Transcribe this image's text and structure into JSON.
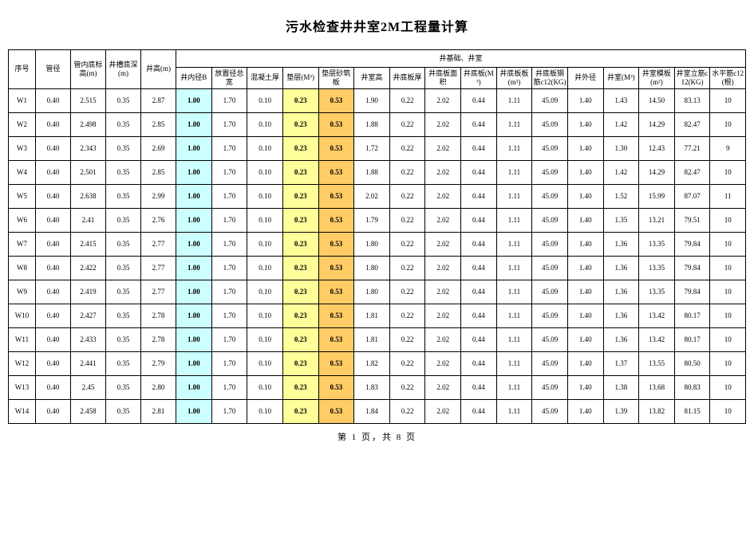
{
  "title": "污水检查井井室2M工程量计算",
  "group_header": "井基础、井室",
  "columns": [
    "序号",
    "管径",
    "管内底标高(m)",
    "井槽底深(m)",
    "井高(m)",
    "井内径B",
    "放置径总宽",
    "混凝土厚",
    "垫层(M³)",
    "垫层砂筑板",
    "井室高",
    "井底板厚",
    "井底板面积",
    "井底板(M³)",
    "井底板板(m²)",
    "井底板钢筋c12(KG)",
    "井外径",
    "井室(M³)",
    "井室模板(m²)",
    "井室立筋c12(KG)",
    "水平筋c12(根)"
  ],
  "col_classes": [
    "col-seq",
    "col-std",
    "col-std",
    "col-std",
    "col-std",
    "col-std",
    "col-std",
    "col-std",
    "col-std",
    "col-std",
    "col-std",
    "col-std",
    "col-std",
    "col-std",
    "col-std",
    "col-std",
    "col-std",
    "col-std",
    "col-std",
    "col-std",
    "col-std"
  ],
  "highlight_cols": {
    "5": "hl-blue",
    "8": "hl-yellow",
    "9": "hl-orange"
  },
  "rows": [
    [
      "W1",
      "0.40",
      "2.515",
      "0.35",
      "2.87",
      "1.00",
      "1.70",
      "0.10",
      "0.23",
      "0.53",
      "1.90",
      "0.22",
      "2.02",
      "0.44",
      "1.11",
      "45.09",
      "1.40",
      "1.43",
      "14.50",
      "83.13",
      "10"
    ],
    [
      "W2",
      "0.40",
      "2.498",
      "0.35",
      "2.85",
      "1.00",
      "1.70",
      "0.10",
      "0.23",
      "0.53",
      "1.88",
      "0.22",
      "2.02",
      "0.44",
      "1.11",
      "45.09",
      "1.40",
      "1.42",
      "14.29",
      "82.47",
      "10"
    ],
    [
      "W3",
      "0.40",
      "2.343",
      "0.35",
      "2.69",
      "1.00",
      "1.70",
      "0.10",
      "0.23",
      "0.53",
      "1.72",
      "0.22",
      "2.02",
      "0.44",
      "1.11",
      "45.09",
      "1.40",
      "1.30",
      "12.43",
      "77.21",
      "9"
    ],
    [
      "W4",
      "0.40",
      "2.501",
      "0.35",
      "2.85",
      "1.00",
      "1.70",
      "0.10",
      "0.23",
      "0.53",
      "1.88",
      "0.22",
      "2.02",
      "0.44",
      "1.11",
      "45.09",
      "1.40",
      "1.42",
      "14.29",
      "82.47",
      "10"
    ],
    [
      "W5",
      "0.40",
      "2.638",
      "0.35",
      "2.99",
      "1.00",
      "1.70",
      "0.10",
      "0.23",
      "0.53",
      "2.02",
      "0.22",
      "2.02",
      "0.44",
      "1.11",
      "45.09",
      "1.40",
      "1.52",
      "15.99",
      "87.07",
      "11"
    ],
    [
      "W6",
      "0.40",
      "2.41",
      "0.35",
      "2.76",
      "1.00",
      "1.70",
      "0.10",
      "0.23",
      "0.53",
      "1.79",
      "0.22",
      "2.02",
      "0.44",
      "1.11",
      "45.09",
      "1.40",
      "1.35",
      "13.21",
      "79.51",
      "10"
    ],
    [
      "W7",
      "0.40",
      "2.415",
      "0.35",
      "2.77",
      "1.00",
      "1.70",
      "0.10",
      "0.23",
      "0.53",
      "1.80",
      "0.22",
      "2.02",
      "0.44",
      "1.11",
      "45.09",
      "1.40",
      "1.36",
      "13.35",
      "79.84",
      "10"
    ],
    [
      "W8",
      "0.40",
      "2.422",
      "0.35",
      "2.77",
      "1.00",
      "1.70",
      "0.10",
      "0.23",
      "0.53",
      "1.80",
      "0.22",
      "2.02",
      "0.44",
      "1.11",
      "45.09",
      "1.40",
      "1.36",
      "13.35",
      "79.84",
      "10"
    ],
    [
      "W9",
      "0.40",
      "2.419",
      "0.35",
      "2.77",
      "1.00",
      "1.70",
      "0.10",
      "0.23",
      "0.53",
      "1.80",
      "0.22",
      "2.02",
      "0.44",
      "1.11",
      "45.09",
      "1.40",
      "1.36",
      "13.35",
      "79.84",
      "10"
    ],
    [
      "W10",
      "0.40",
      "2.427",
      "0.35",
      "2.78",
      "1.00",
      "1.70",
      "0.10",
      "0.23",
      "0.53",
      "1.81",
      "0.22",
      "2.02",
      "0.44",
      "1.11",
      "45.09",
      "1.40",
      "1.36",
      "13.42",
      "80.17",
      "10"
    ],
    [
      "W11",
      "0.40",
      "2.433",
      "0.35",
      "2.78",
      "1.00",
      "1.70",
      "0.10",
      "0.23",
      "0.53",
      "1.81",
      "0.22",
      "2.02",
      "0.44",
      "1.11",
      "45.09",
      "1.40",
      "1.36",
      "13.42",
      "80.17",
      "10"
    ],
    [
      "W12",
      "0.40",
      "2.441",
      "0.35",
      "2.79",
      "1.00",
      "1.70",
      "0.10",
      "0.23",
      "0.53",
      "1.82",
      "0.22",
      "2.02",
      "0.44",
      "1.11",
      "45.09",
      "1.40",
      "1.37",
      "13.55",
      "80.50",
      "10"
    ],
    [
      "W13",
      "0.40",
      "2.45",
      "0.35",
      "2.80",
      "1.00",
      "1.70",
      "0.10",
      "0.23",
      "0.53",
      "1.83",
      "0.22",
      "2.02",
      "0.44",
      "1.11",
      "45.09",
      "1.40",
      "1.38",
      "13.68",
      "80.83",
      "10"
    ],
    [
      "W14",
      "0.40",
      "2.458",
      "0.35",
      "2.81",
      "1.00",
      "1.70",
      "0.10",
      "0.23",
      "0.53",
      "1.84",
      "0.22",
      "2.02",
      "0.44",
      "1.11",
      "45.09",
      "1.40",
      "1.39",
      "13.82",
      "81.15",
      "10"
    ]
  ],
  "footer": "第 1 页，共 8 页"
}
